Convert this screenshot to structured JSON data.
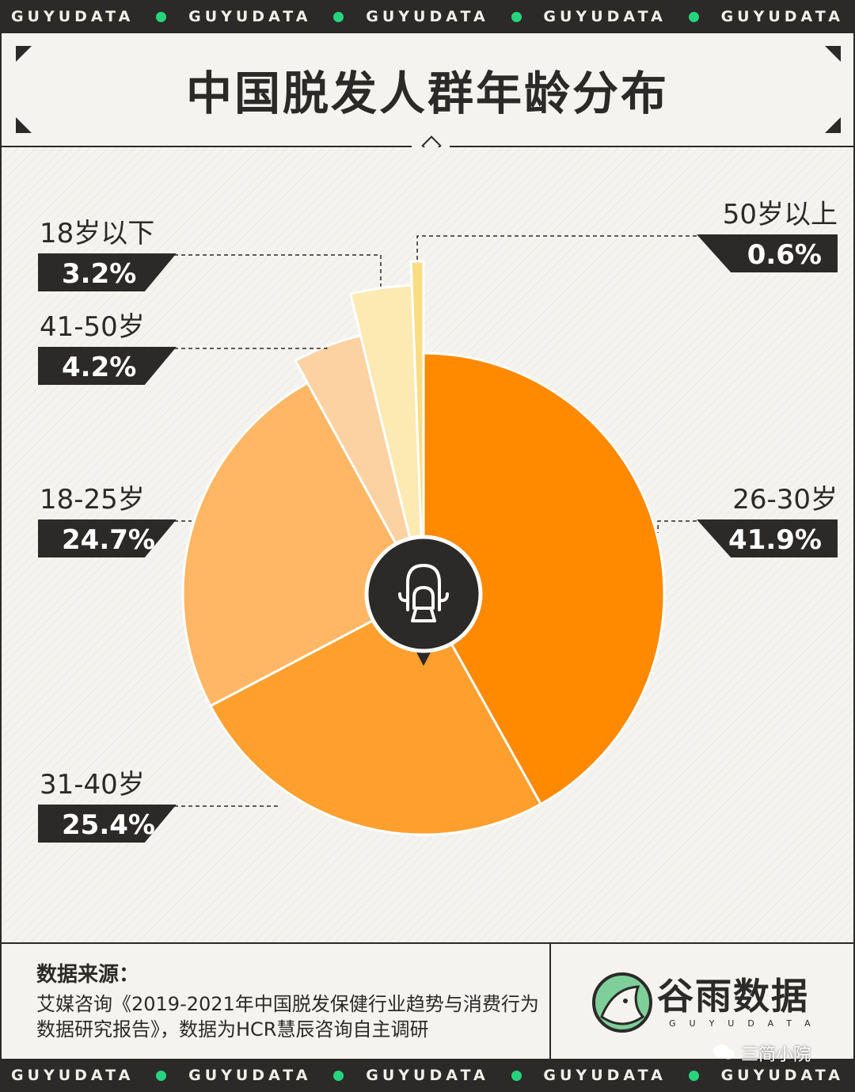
{
  "brand": {
    "ticker_word": "GUYUDATA",
    "name": "谷雨数据",
    "sub": "GUYUDATA",
    "accent_color": "#27d47e",
    "dark_color": "#2b2a28"
  },
  "header": {
    "title": "中国脱发人群年龄分布"
  },
  "center_icon": "hair-loss-person-icon",
  "chart_data": {
    "type": "pie",
    "title": "中国脱发人群年龄分布",
    "unit": "%",
    "slices": [
      {
        "label": "26-30岁",
        "value": 41.9,
        "display": "41.9%",
        "color": "#ff8a00"
      },
      {
        "label": "31-40岁",
        "value": 25.4,
        "display": "25.4%",
        "color": "#ffa02e"
      },
      {
        "label": "18-25岁",
        "value": 24.7,
        "display": "24.7%",
        "color": "#ffb766"
      },
      {
        "label": "41-50岁",
        "value": 4.2,
        "display": "4.2%",
        "color": "#fdd2a3"
      },
      {
        "label": "18岁以下",
        "value": 3.2,
        "display": "3.2%",
        "color": "#fde9b2"
      },
      {
        "label": "50岁以上",
        "value": 0.6,
        "display": "0.6%",
        "color": "#f8dd83"
      }
    ]
  },
  "footer": {
    "source_label": "数据来源：",
    "source_text": "艾媒咨询《2019-2021年中国脱发保健行业趋势与消费行为数据研究报告》，数据为HCR慧辰咨询自主调研"
  },
  "watermark": {
    "text": "三简小院",
    "icon": "wechat-icon"
  }
}
